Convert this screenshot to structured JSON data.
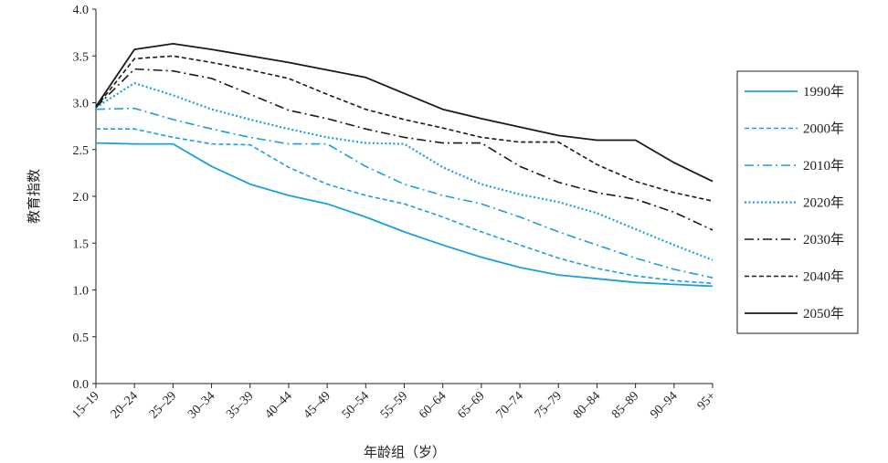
{
  "chart_data": {
    "type": "line",
    "xlabel": "年龄组（岁）",
    "ylabel": "教育指数",
    "ylim": [
      0,
      4
    ],
    "yticks": [
      "0.0",
      "0.5",
      "1.0",
      "1.5",
      "2.0",
      "2.5",
      "3.0",
      "3.5",
      "4.0"
    ],
    "grid": false,
    "legend_position": "right",
    "categories": [
      "15–19",
      "20–24",
      "25–29",
      "30–34",
      "35–39",
      "40–44",
      "45–49",
      "50–54",
      "55–59",
      "60–64",
      "65–69",
      "70–74",
      "75–79",
      "80–84",
      "85–89",
      "90–94",
      "95+"
    ],
    "series": [
      {
        "name": "1990年",
        "color": "#1aa0dc",
        "style": "solid",
        "width": 1.8,
        "values": [
          2.57,
          2.56,
          2.56,
          2.32,
          2.13,
          2.01,
          1.92,
          1.78,
          1.62,
          1.48,
          1.35,
          1.24,
          1.16,
          1.12,
          1.08,
          1.06,
          1.04
        ]
      },
      {
        "name": "2000年",
        "color": "#1aa0dc",
        "style": "dashed",
        "width": 1.6,
        "values": [
          2.72,
          2.72,
          2.63,
          2.56,
          2.55,
          2.31,
          2.13,
          2.01,
          1.92,
          1.78,
          1.62,
          1.48,
          1.34,
          1.23,
          1.15,
          1.1,
          1.07
        ]
      },
      {
        "name": "2010年",
        "color": "#1aa0dc",
        "style": "dashdot",
        "width": 1.6,
        "values": [
          2.93,
          2.94,
          2.82,
          2.72,
          2.63,
          2.56,
          2.56,
          2.32,
          2.13,
          2.01,
          1.92,
          1.78,
          1.62,
          1.48,
          1.34,
          1.22,
          1.13
        ]
      },
      {
        "name": "2020年",
        "color": "#1aa0dc",
        "style": "dotted",
        "width": 2.2,
        "values": [
          2.95,
          3.21,
          3.08,
          2.93,
          2.82,
          2.72,
          2.63,
          2.57,
          2.56,
          2.31,
          2.13,
          2.02,
          1.94,
          1.82,
          1.65,
          1.48,
          1.32
        ]
      },
      {
        "name": "2030年",
        "color": "#1a1a1a",
        "style": "dashdot",
        "width": 1.6,
        "values": [
          2.95,
          3.36,
          3.34,
          3.26,
          3.09,
          2.92,
          2.83,
          2.72,
          2.63,
          2.57,
          2.57,
          2.32,
          2.15,
          2.04,
          1.97,
          1.83,
          1.64
        ]
      },
      {
        "name": "2040年",
        "color": "#1a1a1a",
        "style": "dashed",
        "width": 1.6,
        "values": [
          2.95,
          3.47,
          3.5,
          3.43,
          3.35,
          3.26,
          3.09,
          2.93,
          2.82,
          2.73,
          2.63,
          2.58,
          2.58,
          2.34,
          2.16,
          2.04,
          1.95
        ]
      },
      {
        "name": "2050年",
        "color": "#1a1a1a",
        "style": "solid",
        "width": 1.8,
        "values": [
          2.96,
          3.57,
          3.63,
          3.57,
          3.5,
          3.43,
          3.35,
          3.27,
          3.1,
          2.93,
          2.83,
          2.74,
          2.65,
          2.6,
          2.6,
          2.36,
          2.16
        ]
      }
    ]
  }
}
